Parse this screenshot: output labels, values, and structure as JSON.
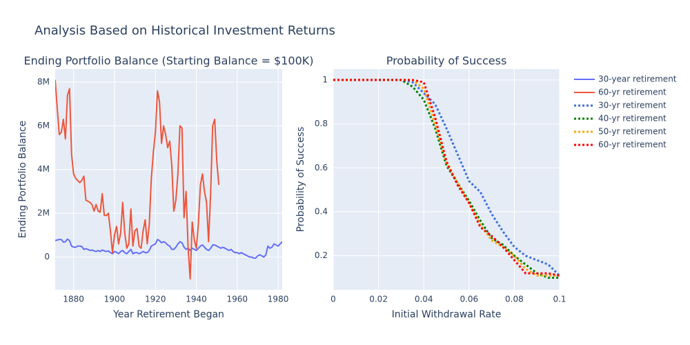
{
  "title": "Analysis Based on Historical Investment Returns",
  "chart_data": [
    {
      "type": "line",
      "title": "Ending Portfolio Balance (Starting Balance = $100K)",
      "x_label": "Year Retirement Began",
      "y_label": "Ending Portfolio Balance",
      "x": [
        1871,
        1872,
        1873,
        1874,
        1875,
        1876,
        1877,
        1878,
        1879,
        1880,
        1881,
        1882,
        1883,
        1884,
        1885,
        1886,
        1887,
        1888,
        1889,
        1890,
        1891,
        1892,
        1893,
        1894,
        1895,
        1896,
        1897,
        1898,
        1899,
        1900,
        1901,
        1902,
        1903,
        1904,
        1905,
        1906,
        1907,
        1908,
        1909,
        1910,
        1911,
        1912,
        1913,
        1914,
        1915,
        1916,
        1917,
        1918,
        1919,
        1920,
        1921,
        1922,
        1923,
        1924,
        1925,
        1926,
        1927,
        1928,
        1929,
        1930,
        1931,
        1932,
        1933,
        1934,
        1935,
        1936,
        1937,
        1938,
        1939,
        1940,
        1941,
        1942,
        1943,
        1944,
        1945,
        1946,
        1947,
        1948,
        1949,
        1950,
        1951,
        1952,
        1953,
        1954,
        1955,
        1956,
        1957,
        1958,
        1959,
        1960,
        1961,
        1962,
        1963,
        1964,
        1965,
        1966,
        1967,
        1968,
        1969,
        1970,
        1971,
        1972,
        1973,
        1974,
        1975,
        1976,
        1977,
        1978,
        1979,
        1980,
        1981,
        1982
      ],
      "series": [
        {
          "name": "30-year retirement",
          "color": "#636efa",
          "values": [
            750000,
            780000,
            800000,
            800000,
            680000,
            700000,
            820000,
            750000,
            500000,
            450000,
            450000,
            500000,
            500000,
            480000,
            350000,
            380000,
            350000,
            300000,
            320000,
            280000,
            250000,
            300000,
            250000,
            320000,
            280000,
            250000,
            280000,
            200000,
            150000,
            250000,
            220000,
            150000,
            250000,
            300000,
            200000,
            150000,
            250000,
            350000,
            150000,
            200000,
            200000,
            150000,
            200000,
            250000,
            200000,
            200000,
            300000,
            500000,
            550000,
            600000,
            800000,
            750000,
            650000,
            700000,
            650000,
            550000,
            500000,
            350000,
            350000,
            450000,
            600000,
            700000,
            650000,
            450000,
            350000,
            400000,
            300000,
            400000,
            350000,
            300000,
            400000,
            500000,
            550000,
            450000,
            350000,
            300000,
            400000,
            550000,
            550000,
            500000,
            450000,
            400000,
            450000,
            400000,
            350000,
            300000,
            350000,
            250000,
            200000,
            200000,
            150000,
            200000,
            150000,
            100000,
            50000,
            0,
            0,
            -50000,
            -50000,
            50000,
            100000,
            50000,
            0,
            100000,
            500000,
            400000,
            450000,
            600000,
            550000,
            500000,
            600000,
            700000
          ]
        },
        {
          "name": "60-yr retirement",
          "color": "#ef553b",
          "values": [
            8100000,
            6800000,
            5600000,
            5700000,
            6300000,
            5400000,
            7400000,
            7700000,
            4700000,
            3800000,
            3600000,
            3500000,
            3400000,
            3500000,
            3700000,
            2600000,
            2550000,
            2500000,
            2400000,
            2100000,
            2400000,
            2100000,
            2050000,
            2900000,
            1900000,
            1900000,
            2000000,
            1200000,
            200000,
            1000000,
            1400000,
            600000,
            1100000,
            2500000,
            1100000,
            400000,
            600000,
            2200000,
            500000,
            1200000,
            1300000,
            500000,
            400000,
            1200000,
            1700000,
            600000,
            1500000,
            3600000,
            4800000,
            5700000,
            7600000,
            7100000,
            5200000,
            6000000,
            5600000,
            5000000,
            5300000,
            4200000,
            2100000,
            2600000,
            3800000,
            6000000,
            5900000,
            1800000,
            3000000,
            400000,
            -1000000,
            1600000,
            800000,
            400000,
            1500000,
            3300000,
            3800000,
            3000000,
            2500000,
            700000,
            2900000,
            6000000,
            6300000,
            4400000,
            3300000,
            null,
            null,
            null,
            null,
            null,
            null,
            null,
            null,
            null,
            null,
            null,
            null,
            null,
            null,
            null,
            null,
            null,
            null,
            null,
            null,
            null,
            null,
            null,
            null,
            null,
            null,
            null,
            null,
            null,
            null,
            null
          ]
        }
      ],
      "xlim": [
        1871,
        1982
      ],
      "xticks": [
        1880,
        1900,
        1920,
        1940,
        1960,
        1980
      ],
      "ylim": [
        -1500000,
        8600000
      ],
      "yticks": [
        0,
        {
          "value": 2000000,
          "label": "2M"
        },
        {
          "value": 4000000,
          "label": "4M"
        },
        {
          "value": 6000000,
          "label": "6M"
        },
        {
          "value": 8000000,
          "label": "8M"
        }
      ],
      "grid": true
    },
    {
      "type": "line",
      "title": "Probability of Success",
      "x_label": "Initial Withdrawal Rate",
      "y_label": "Probability of Success",
      "x": [
        0,
        0.005,
        0.01,
        0.015,
        0.02,
        0.025,
        0.03,
        0.035,
        0.04,
        0.045,
        0.05,
        0.055,
        0.06,
        0.065,
        0.07,
        0.075,
        0.08,
        0.085,
        0.09,
        0.095,
        0.1
      ],
      "series": [
        {
          "name": "30-yr retirement",
          "color": "#3d6fe0",
          "dash": "dot",
          "values": [
            1,
            1,
            1,
            1,
            1,
            1,
            1,
            0.99,
            0.94,
            0.89,
            0.78,
            0.66,
            0.54,
            0.49,
            0.39,
            0.31,
            0.24,
            0.2,
            0.18,
            0.16,
            0.11
          ]
        },
        {
          "name": "40-yr retirement",
          "color": "#008000",
          "dash": "dot",
          "values": [
            1,
            1,
            1,
            1,
            1,
            1,
            1,
            0.97,
            0.91,
            0.78,
            0.61,
            0.53,
            0.45,
            0.36,
            0.28,
            0.25,
            0.2,
            0.16,
            0.12,
            0.1,
            0.1
          ]
        },
        {
          "name": "50-yr retirement",
          "color": "#ffa500",
          "dash": "dot",
          "values": [
            1,
            1,
            1,
            1,
            1,
            1,
            1,
            1,
            0.96,
            0.8,
            0.62,
            0.53,
            0.44,
            0.34,
            0.27,
            0.24,
            0.2,
            0.14,
            0.11,
            0.11,
            0.11
          ]
        },
        {
          "name": "60-yr retirement",
          "color": "#ff0000",
          "dash": "dot",
          "values": [
            1,
            1,
            1,
            1,
            1,
            1,
            1,
            1,
            0.99,
            0.83,
            0.63,
            0.52,
            0.44,
            0.33,
            0.29,
            0.24,
            0.18,
            0.12,
            0.12,
            0.12,
            0.11
          ]
        }
      ],
      "xlim": [
        0,
        0.1
      ],
      "xticks": [
        0,
        0.02,
        0.04,
        0.06,
        0.08,
        0.1
      ],
      "ylim": [
        0.045,
        1.05
      ],
      "yticks": [
        0.2,
        0.4,
        0.6,
        0.8,
        1
      ],
      "grid": true
    }
  ]
}
